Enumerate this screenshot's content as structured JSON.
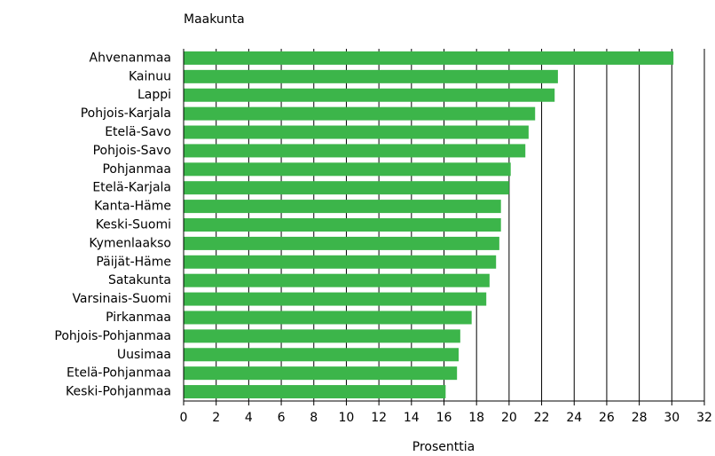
{
  "chart_data": {
    "type": "bar",
    "orientation": "horizontal",
    "y_label": "Maakunta",
    "x_label": "Prosenttia",
    "categories": [
      "Ahvenanmaa",
      "Kainuu",
      "Lappi",
      "Pohjois-Karjala",
      "Etelä-Savo",
      "Pohjois-Savo",
      "Pohjanmaa",
      "Etelä-Karjala",
      "Kanta-Häme",
      "Keski-Suomi",
      "Kymenlaakso",
      "Päijät-Häme",
      "Satakunta",
      "Varsinais-Suomi",
      "Pirkanmaa",
      "Pohjois-Pohjanmaa",
      "Uusimaa",
      "Etelä-Pohjanmaa",
      "Keski-Pohjanmaa"
    ],
    "values": [
      30.1,
      23.0,
      22.8,
      21.6,
      21.2,
      21.0,
      20.1,
      20.0,
      19.5,
      19.5,
      19.4,
      19.2,
      18.8,
      18.6,
      17.7,
      17.0,
      16.9,
      16.8,
      16.1
    ],
    "color": "#3cb54a",
    "xlim": [
      0,
      32
    ],
    "xticks": [
      0,
      2,
      4,
      6,
      8,
      10,
      12,
      14,
      16,
      18,
      20,
      22,
      24,
      26,
      28,
      30,
      32
    ],
    "grid": true
  }
}
